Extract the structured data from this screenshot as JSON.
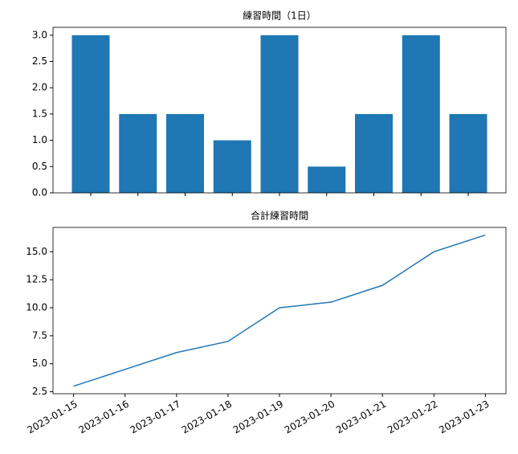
{
  "chart_data": [
    {
      "type": "bar",
      "title": "練習時間（1日）",
      "x": [
        "2023-01-15",
        "2023-01-16",
        "2023-01-17",
        "2023-01-18",
        "2023-01-19",
        "2023-01-20",
        "2023-01-21",
        "2023-01-22",
        "2023-01-23"
      ],
      "values": [
        3,
        1.5,
        1.5,
        1,
        3,
        0.5,
        1.5,
        3,
        1.5
      ],
      "color": "#1f77b4",
      "xlim": [
        "2023-01-14T04:48",
        "2023-01-23T19:12"
      ],
      "ylim": [
        0,
        3.15
      ],
      "yticks": [
        {
          "value": 0,
          "label": "0.0"
        },
        {
          "value": 0.5,
          "label": "0.5"
        },
        {
          "value": 1,
          "label": "1.0"
        },
        {
          "value": 1.5,
          "label": "1.5"
        },
        {
          "value": 2,
          "label": "2.0"
        },
        {
          "value": 2.5,
          "label": "2.5"
        },
        {
          "value": 3,
          "label": "3.0"
        }
      ]
    },
    {
      "type": "line",
      "title": "合計練習時間",
      "x": [
        "2023-01-15",
        "2023-01-16",
        "2023-01-17",
        "2023-01-18",
        "2023-01-19",
        "2023-01-20",
        "2023-01-21",
        "2023-01-22",
        "2023-01-23"
      ],
      "values": [
        3,
        4.5,
        6,
        7,
        10,
        10.5,
        12,
        15,
        16.5
      ],
      "color": "#1f77b4",
      "xlim": [
        "2023-01-14T14:24",
        "2023-01-23T09:36"
      ],
      "ylim": [
        2.325,
        17.175
      ],
      "yticks": [
        2.5,
        {
          "value": 5,
          "label": "5.0"
        },
        7.5,
        {
          "value": 10,
          "label": "10.0"
        },
        12.5,
        {
          "value": 15,
          "label": "15.0"
        }
      ]
    }
  ]
}
